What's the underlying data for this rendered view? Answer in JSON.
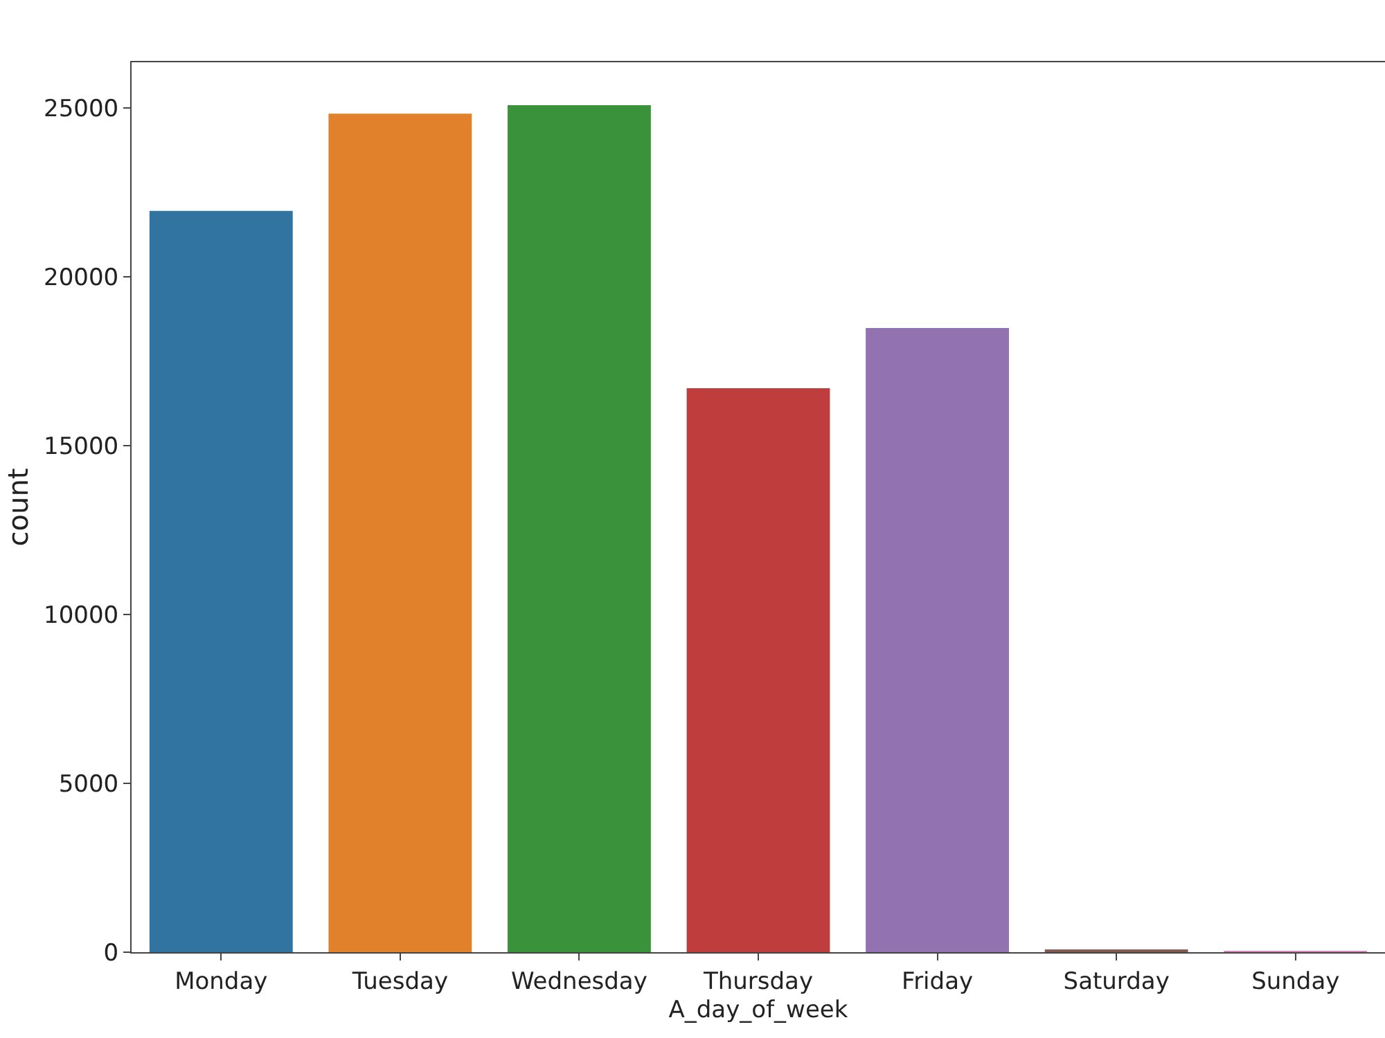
{
  "chart_data": {
    "type": "bar",
    "xlabel": "A_day_of_week",
    "ylabel": "count",
    "categories": [
      "Monday",
      "Tuesday",
      "Wednesday",
      "Thursday",
      "Friday",
      "Saturday",
      "Sunday"
    ],
    "values": [
      21950,
      24830,
      25080,
      16700,
      18480,
      60,
      10
    ],
    "colors": [
      "#3274a1",
      "#e1812c",
      "#3a923a",
      "#c03d3e",
      "#9372b2",
      "#845b53",
      "#d684bd"
    ],
    "ylim": [
      0,
      26350
    ],
    "yticks": [
      0,
      5000,
      10000,
      15000,
      20000,
      25000
    ]
  }
}
